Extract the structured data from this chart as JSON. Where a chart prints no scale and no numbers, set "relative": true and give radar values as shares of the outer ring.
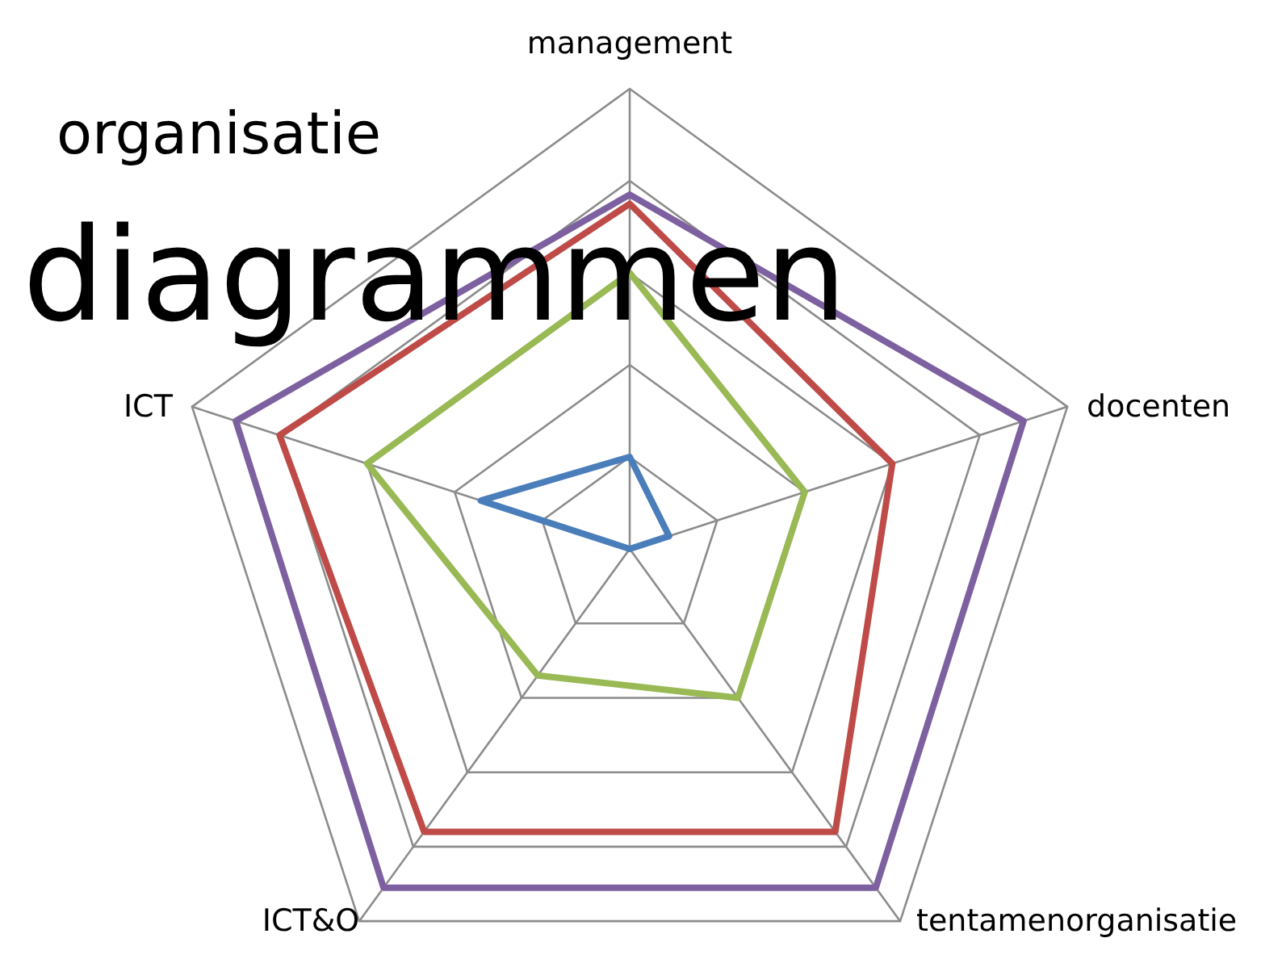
{
  "chart_data": {
    "type": "radar",
    "title": "organisatie",
    "subtitle": "diagrammen",
    "relative": true,
    "grid": true,
    "categories": [
      "management",
      "docenten",
      "tentamenorganisatie",
      "ICT&O",
      "ICT"
    ],
    "series": [
      {
        "color": "#4a7ebb",
        "values": [
          0.2,
          0.09,
          0,
          0,
          0.34
        ]
      },
      {
        "color": "#98b954",
        "values": [
          0.6,
          0.4,
          0.4,
          0.34,
          0.6
        ]
      },
      {
        "color": "#be4b48",
        "values": [
          0.75,
          0.6,
          0.76,
          0.76,
          0.8
        ]
      },
      {
        "color": "#7d60a0",
        "values": [
          0.77,
          0.9,
          0.91,
          0.91,
          0.9
        ]
      }
    ]
  }
}
